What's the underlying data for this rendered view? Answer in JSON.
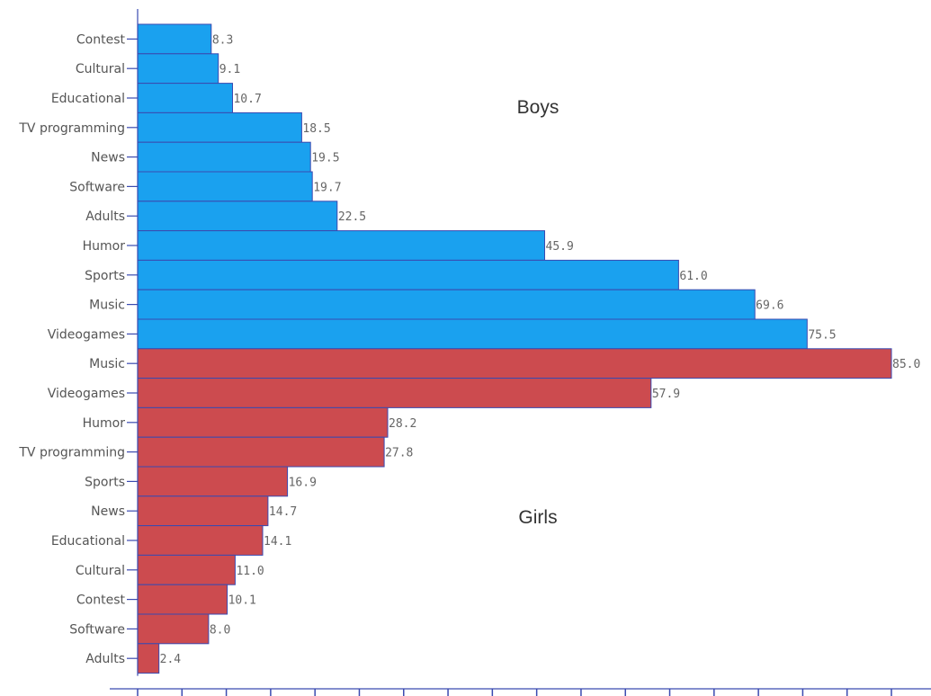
{
  "chart_data": {
    "type": "bar",
    "orientation": "horizontal",
    "xlim": [
      0,
      85
    ],
    "x_tick_step": 5,
    "x_tick_labels_shown": false,
    "grid": false,
    "groups": [
      {
        "label": "Boys",
        "color": "#1aa1ef",
        "categories": [
          "Contest",
          "Cultural",
          "Educational",
          "TV programming",
          "News",
          "Software",
          "Adults",
          "Humor",
          "Sports",
          "Music",
          "Videogames"
        ],
        "values": [
          8.3,
          9.1,
          10.7,
          18.5,
          19.5,
          19.7,
          22.5,
          45.9,
          61.0,
          69.6,
          75.5
        ],
        "value_labels": [
          "8.3",
          "9.1",
          "10.7",
          "18.5",
          "19.5",
          "19.7",
          "22.5",
          "45.9",
          "61.0",
          "69.6",
          "75.5"
        ]
      },
      {
        "label": "Girls",
        "color": "#cc4b4f",
        "categories": [
          "Music",
          "Videogames",
          "Humor",
          "TV programming",
          "Sports",
          "News",
          "Educational",
          "Cultural",
          "Contest",
          "Software",
          "Adults"
        ],
        "values": [
          85.0,
          57.9,
          28.2,
          27.8,
          16.9,
          14.7,
          14.1,
          11.0,
          10.1,
          8.0,
          2.4
        ],
        "value_labels": [
          "85.0",
          "57.9",
          "28.2",
          "27.8",
          "16.9",
          "14.7",
          "14.1",
          "11.0",
          "10.1",
          "8.0",
          "2.4"
        ]
      }
    ],
    "colors": {
      "bar_stroke": "#3a4ab0",
      "axis": "#3a4ab0"
    }
  }
}
